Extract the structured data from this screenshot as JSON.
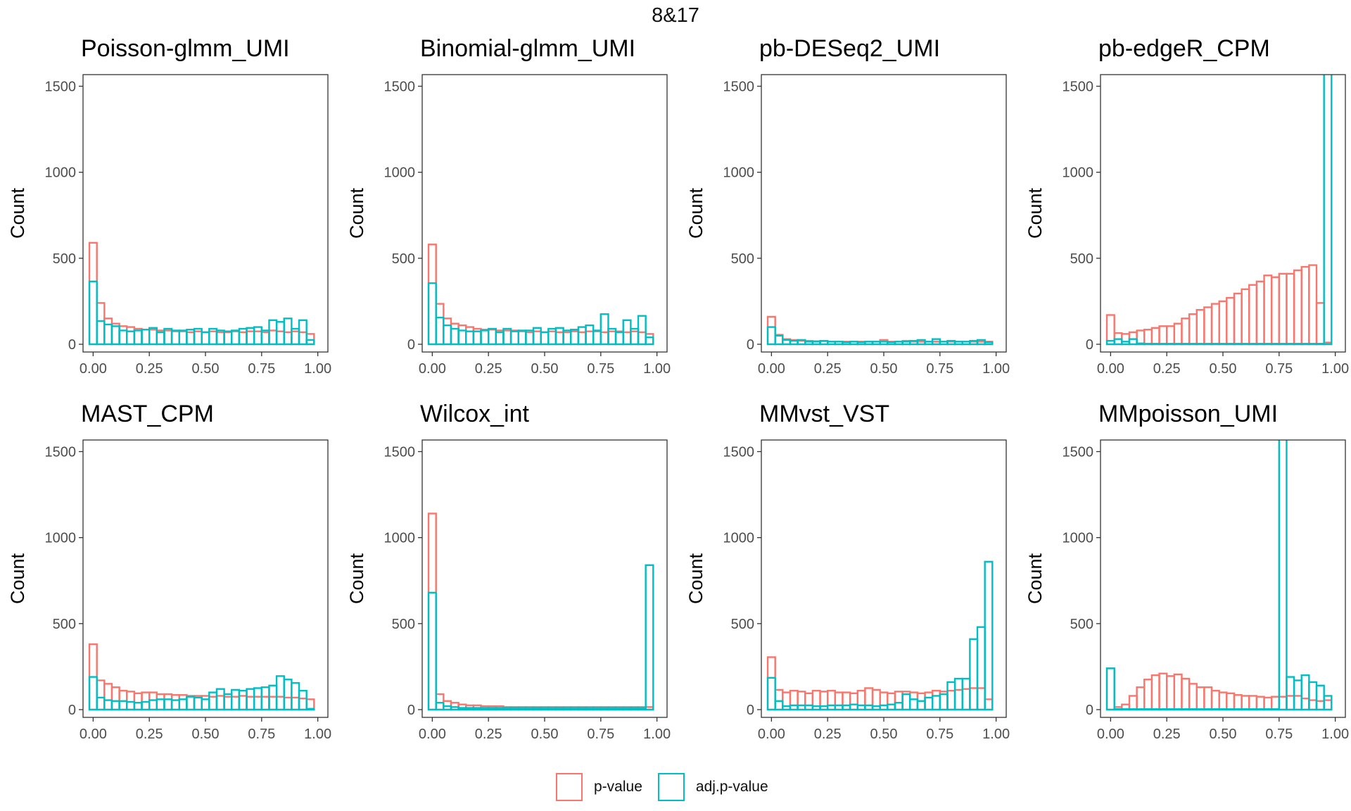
{
  "figure_title": "8&17",
  "legend": {
    "items": [
      {
        "label": "p-value",
        "color": "#F8766D"
      },
      {
        "label": "adj.p-value",
        "color": "#00BFC4"
      }
    ],
    "position": "bottom"
  },
  "chart_data": [
    {
      "type": "bar",
      "title": "Poisson-glmm_UMI",
      "xlabel": "",
      "ylabel": "Count",
      "xlim": [
        0,
        1
      ],
      "ylim": [
        0,
        1500
      ],
      "xticks": [
        "0.00",
        "0.25",
        "0.50",
        "0.75",
        "1.00"
      ],
      "yticks": [
        "0",
        "500",
        "1000",
        "1500"
      ],
      "grid": false,
      "bins": 30,
      "series": [
        {
          "name": "p-value",
          "color": "#F8766D",
          "values": [
            590,
            240,
            150,
            120,
            105,
            100,
            90,
            85,
            85,
            80,
            80,
            75,
            75,
            70,
            75,
            70,
            75,
            70,
            70,
            75,
            70,
            75,
            75,
            70,
            80,
            75,
            70,
            75,
            70,
            60
          ]
        },
        {
          "name": "adj.p-value",
          "color": "#00BFC4",
          "values": [
            365,
            135,
            115,
            105,
            80,
            75,
            80,
            85,
            95,
            70,
            90,
            80,
            80,
            85,
            90,
            70,
            90,
            80,
            75,
            80,
            90,
            95,
            100,
            80,
            140,
            130,
            150,
            90,
            140,
            25
          ]
        }
      ]
    },
    {
      "type": "bar",
      "title": "Binomial-glmm_UMI",
      "xlabel": "",
      "ylabel": "Count",
      "xlim": [
        0,
        1
      ],
      "ylim": [
        0,
        1500
      ],
      "xticks": [
        "0.00",
        "0.25",
        "0.50",
        "0.75",
        "1.00"
      ],
      "yticks": [
        "0",
        "500",
        "1000",
        "1500"
      ],
      "grid": false,
      "bins": 30,
      "series": [
        {
          "name": "p-value",
          "color": "#F8766D",
          "values": [
            580,
            235,
            150,
            120,
            110,
            100,
            90,
            85,
            85,
            80,
            80,
            80,
            75,
            70,
            75,
            70,
            75,
            70,
            70,
            75,
            70,
            75,
            75,
            70,
            75,
            75,
            70,
            75,
            70,
            60
          ]
        },
        {
          "name": "adj.p-value",
          "color": "#00BFC4",
          "values": [
            355,
            155,
            110,
            90,
            80,
            75,
            75,
            80,
            90,
            70,
            90,
            75,
            80,
            80,
            95,
            70,
            90,
            95,
            80,
            85,
            100,
            110,
            80,
            175,
            90,
            70,
            140,
            90,
            165,
            40
          ]
        }
      ]
    },
    {
      "type": "bar",
      "title": "pb-DESeq2_UMI",
      "xlabel": "",
      "ylabel": "Count",
      "xlim": [
        0,
        1
      ],
      "ylim": [
        0,
        1500
      ],
      "xticks": [
        "0.00",
        "0.25",
        "0.50",
        "0.75",
        "1.00"
      ],
      "yticks": [
        "0",
        "500",
        "1000",
        "1500"
      ],
      "grid": false,
      "bins": 30,
      "series": [
        {
          "name": "p-value",
          "color": "#F8766D",
          "values": [
            160,
            55,
            30,
            25,
            20,
            20,
            18,
            18,
            15,
            15,
            15,
            15,
            15,
            15,
            15,
            25,
            15,
            15,
            20,
            15,
            15,
            15,
            15,
            15,
            15,
            15,
            15,
            15,
            15,
            15
          ]
        },
        {
          "name": "adj.p-value",
          "color": "#00BFC4",
          "values": [
            100,
            50,
            25,
            20,
            25,
            15,
            15,
            20,
            15,
            15,
            12,
            15,
            12,
            15,
            15,
            15,
            12,
            15,
            15,
            20,
            25,
            15,
            30,
            15,
            20,
            15,
            15,
            20,
            25,
            12
          ]
        }
      ]
    },
    {
      "type": "bar",
      "title": "pb-edgeR_CPM",
      "xlabel": "",
      "ylabel": "Count",
      "xlim": [
        0,
        1
      ],
      "ylim": [
        0,
        1500
      ],
      "xticks": [
        "0.00",
        "0.25",
        "0.50",
        "0.75",
        "1.00"
      ],
      "yticks": [
        "0",
        "500",
        "1000",
        "1500"
      ],
      "grid": false,
      "bins": 30,
      "series": [
        {
          "name": "p-value",
          "color": "#F8766D",
          "values": [
            170,
            65,
            60,
            70,
            80,
            85,
            95,
            105,
            105,
            120,
            150,
            175,
            200,
            215,
            235,
            250,
            270,
            295,
            320,
            345,
            365,
            400,
            390,
            410,
            410,
            430,
            450,
            460,
            240,
            10
          ]
        },
        {
          "name": "adj.p-value",
          "color": "#00BFC4",
          "values": [
            20,
            30,
            15,
            30,
            5,
            3,
            3,
            3,
            3,
            3,
            3,
            3,
            3,
            3,
            3,
            3,
            3,
            3,
            3,
            3,
            3,
            3,
            3,
            3,
            3,
            3,
            3,
            3,
            3,
            1650
          ]
        }
      ]
    },
    {
      "type": "bar",
      "title": "MAST_CPM",
      "xlabel": "",
      "ylabel": "Count",
      "xlim": [
        0,
        1
      ],
      "ylim": [
        0,
        1500
      ],
      "xticks": [
        "0.00",
        "0.25",
        "0.50",
        "0.75",
        "1.00"
      ],
      "yticks": [
        "0",
        "500",
        "1000",
        "1500"
      ],
      "grid": false,
      "bins": 30,
      "series": [
        {
          "name": "p-value",
          "color": "#F8766D",
          "values": [
            380,
            170,
            150,
            130,
            110,
            105,
            95,
            100,
            100,
            90,
            90,
            85,
            85,
            80,
            80,
            80,
            75,
            80,
            75,
            75,
            80,
            75,
            75,
            75,
            75,
            75,
            70,
            70,
            65,
            60
          ]
        },
        {
          "name": "adj.p-value",
          "color": "#00BFC4",
          "values": [
            190,
            70,
            55,
            50,
            50,
            45,
            40,
            45,
            55,
            60,
            60,
            55,
            60,
            75,
            70,
            60,
            100,
            120,
            90,
            115,
            110,
            120,
            125,
            130,
            140,
            195,
            175,
            155,
            110,
            5
          ]
        }
      ]
    },
    {
      "type": "bar",
      "title": "Wilcox_int",
      "xlabel": "",
      "ylabel": "Count",
      "xlim": [
        0,
        1
      ],
      "ylim": [
        0,
        1500
      ],
      "xticks": [
        "0.00",
        "0.25",
        "0.50",
        "0.75",
        "1.00"
      ],
      "yticks": [
        "0",
        "500",
        "1000",
        "1500"
      ],
      "grid": false,
      "bins": 30,
      "series": [
        {
          "name": "p-value",
          "color": "#F8766D",
          "values": [
            1140,
            90,
            50,
            40,
            30,
            25,
            25,
            20,
            20,
            20,
            15,
            15,
            15,
            15,
            15,
            15,
            15,
            15,
            15,
            15,
            15,
            15,
            15,
            15,
            15,
            15,
            15,
            15,
            15,
            15
          ]
        },
        {
          "name": "adj.p-value",
          "color": "#00BFC4",
          "values": [
            680,
            40,
            20,
            15,
            10,
            10,
            10,
            10,
            10,
            10,
            10,
            10,
            10,
            10,
            10,
            10,
            10,
            10,
            10,
            10,
            10,
            10,
            10,
            10,
            10,
            10,
            10,
            10,
            10,
            840
          ]
        }
      ]
    },
    {
      "type": "bar",
      "title": "MMvst_VST",
      "xlabel": "",
      "ylabel": "Count",
      "xlim": [
        0,
        1
      ],
      "ylim": [
        0,
        1500
      ],
      "xticks": [
        "0.00",
        "0.25",
        "0.50",
        "0.75",
        "1.00"
      ],
      "yticks": [
        "0",
        "500",
        "1000",
        "1500"
      ],
      "grid": false,
      "bins": 30,
      "series": [
        {
          "name": "p-value",
          "color": "#F8766D",
          "values": [
            305,
            115,
            100,
            110,
            105,
            95,
            110,
            105,
            110,
            100,
            100,
            95,
            110,
            125,
            115,
            100,
            95,
            105,
            105,
            100,
            95,
            100,
            110,
            105,
            110,
            115,
            120,
            125,
            125,
            60
          ]
        },
        {
          "name": "adj.p-value",
          "color": "#00BFC4",
          "values": [
            185,
            50,
            20,
            25,
            25,
            25,
            20,
            20,
            25,
            25,
            25,
            30,
            25,
            25,
            20,
            25,
            30,
            40,
            90,
            60,
            50,
            70,
            80,
            90,
            160,
            180,
            180,
            410,
            480,
            860
          ]
        }
      ]
    },
    {
      "type": "bar",
      "title": "MMpoisson_UMI",
      "xlabel": "",
      "ylabel": "Count",
      "xlim": [
        0,
        1
      ],
      "ylim": [
        0,
        1500
      ],
      "xticks": [
        "0.00",
        "0.25",
        "0.50",
        "0.75",
        "1.00"
      ],
      "yticks": [
        "0",
        "500",
        "1000",
        "1500"
      ],
      "grid": false,
      "bins": 30,
      "series": [
        {
          "name": "p-value",
          "color": "#F8766D",
          "values": [
            240,
            15,
            30,
            80,
            130,
            175,
            200,
            210,
            195,
            205,
            180,
            150,
            130,
            130,
            110,
            100,
            95,
            85,
            80,
            80,
            75,
            70,
            75,
            75,
            80,
            80,
            65,
            55,
            50,
            55
          ]
        },
        {
          "name": "adj.p-value",
          "color": "#00BFC4",
          "values": [
            240,
            3,
            3,
            3,
            3,
            3,
            3,
            3,
            3,
            3,
            3,
            3,
            3,
            3,
            3,
            3,
            3,
            3,
            3,
            3,
            3,
            3,
            3,
            1650,
            190,
            170,
            200,
            160,
            140,
            80
          ]
        }
      ]
    }
  ]
}
